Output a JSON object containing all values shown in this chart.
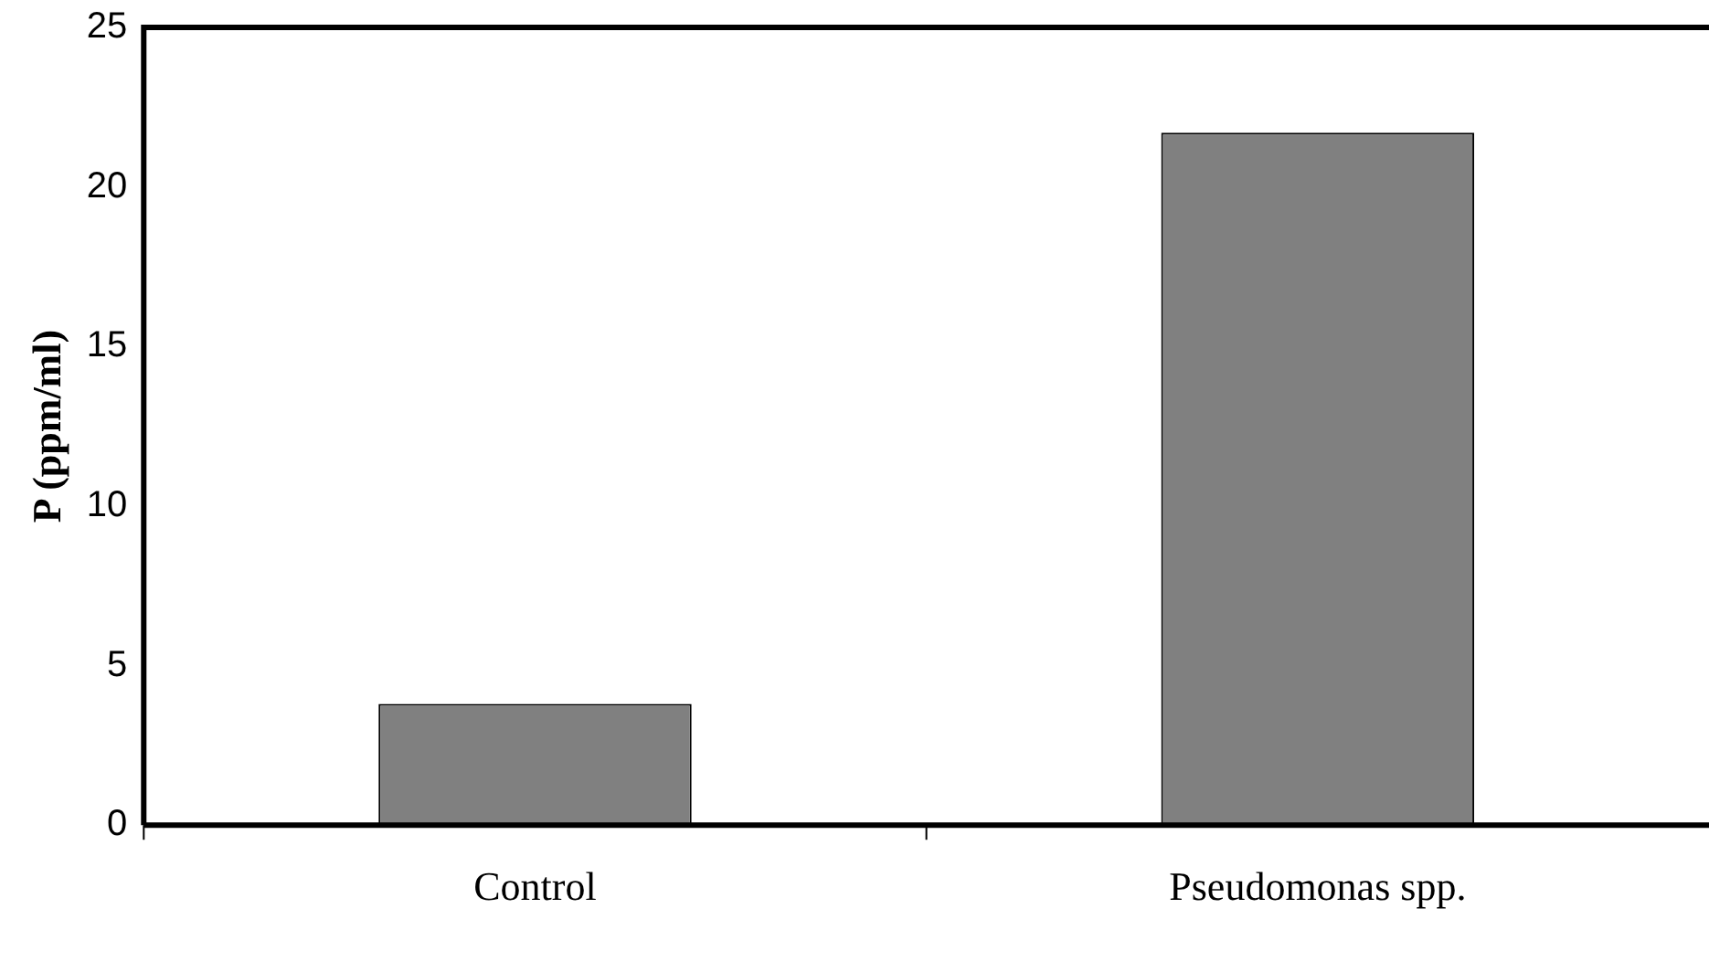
{
  "chart_data": {
    "type": "bar",
    "ylabel": "P (ppm/ml)",
    "categories": [
      "Control",
      "Pseudomonas spp."
    ],
    "values": [
      3.8,
      21.7
    ],
    "color": "#808080",
    "ylim": [
      0,
      25
    ],
    "yticks": [
      0,
      5,
      10,
      15,
      20,
      25
    ],
    "grid": false,
    "legend": false
  }
}
